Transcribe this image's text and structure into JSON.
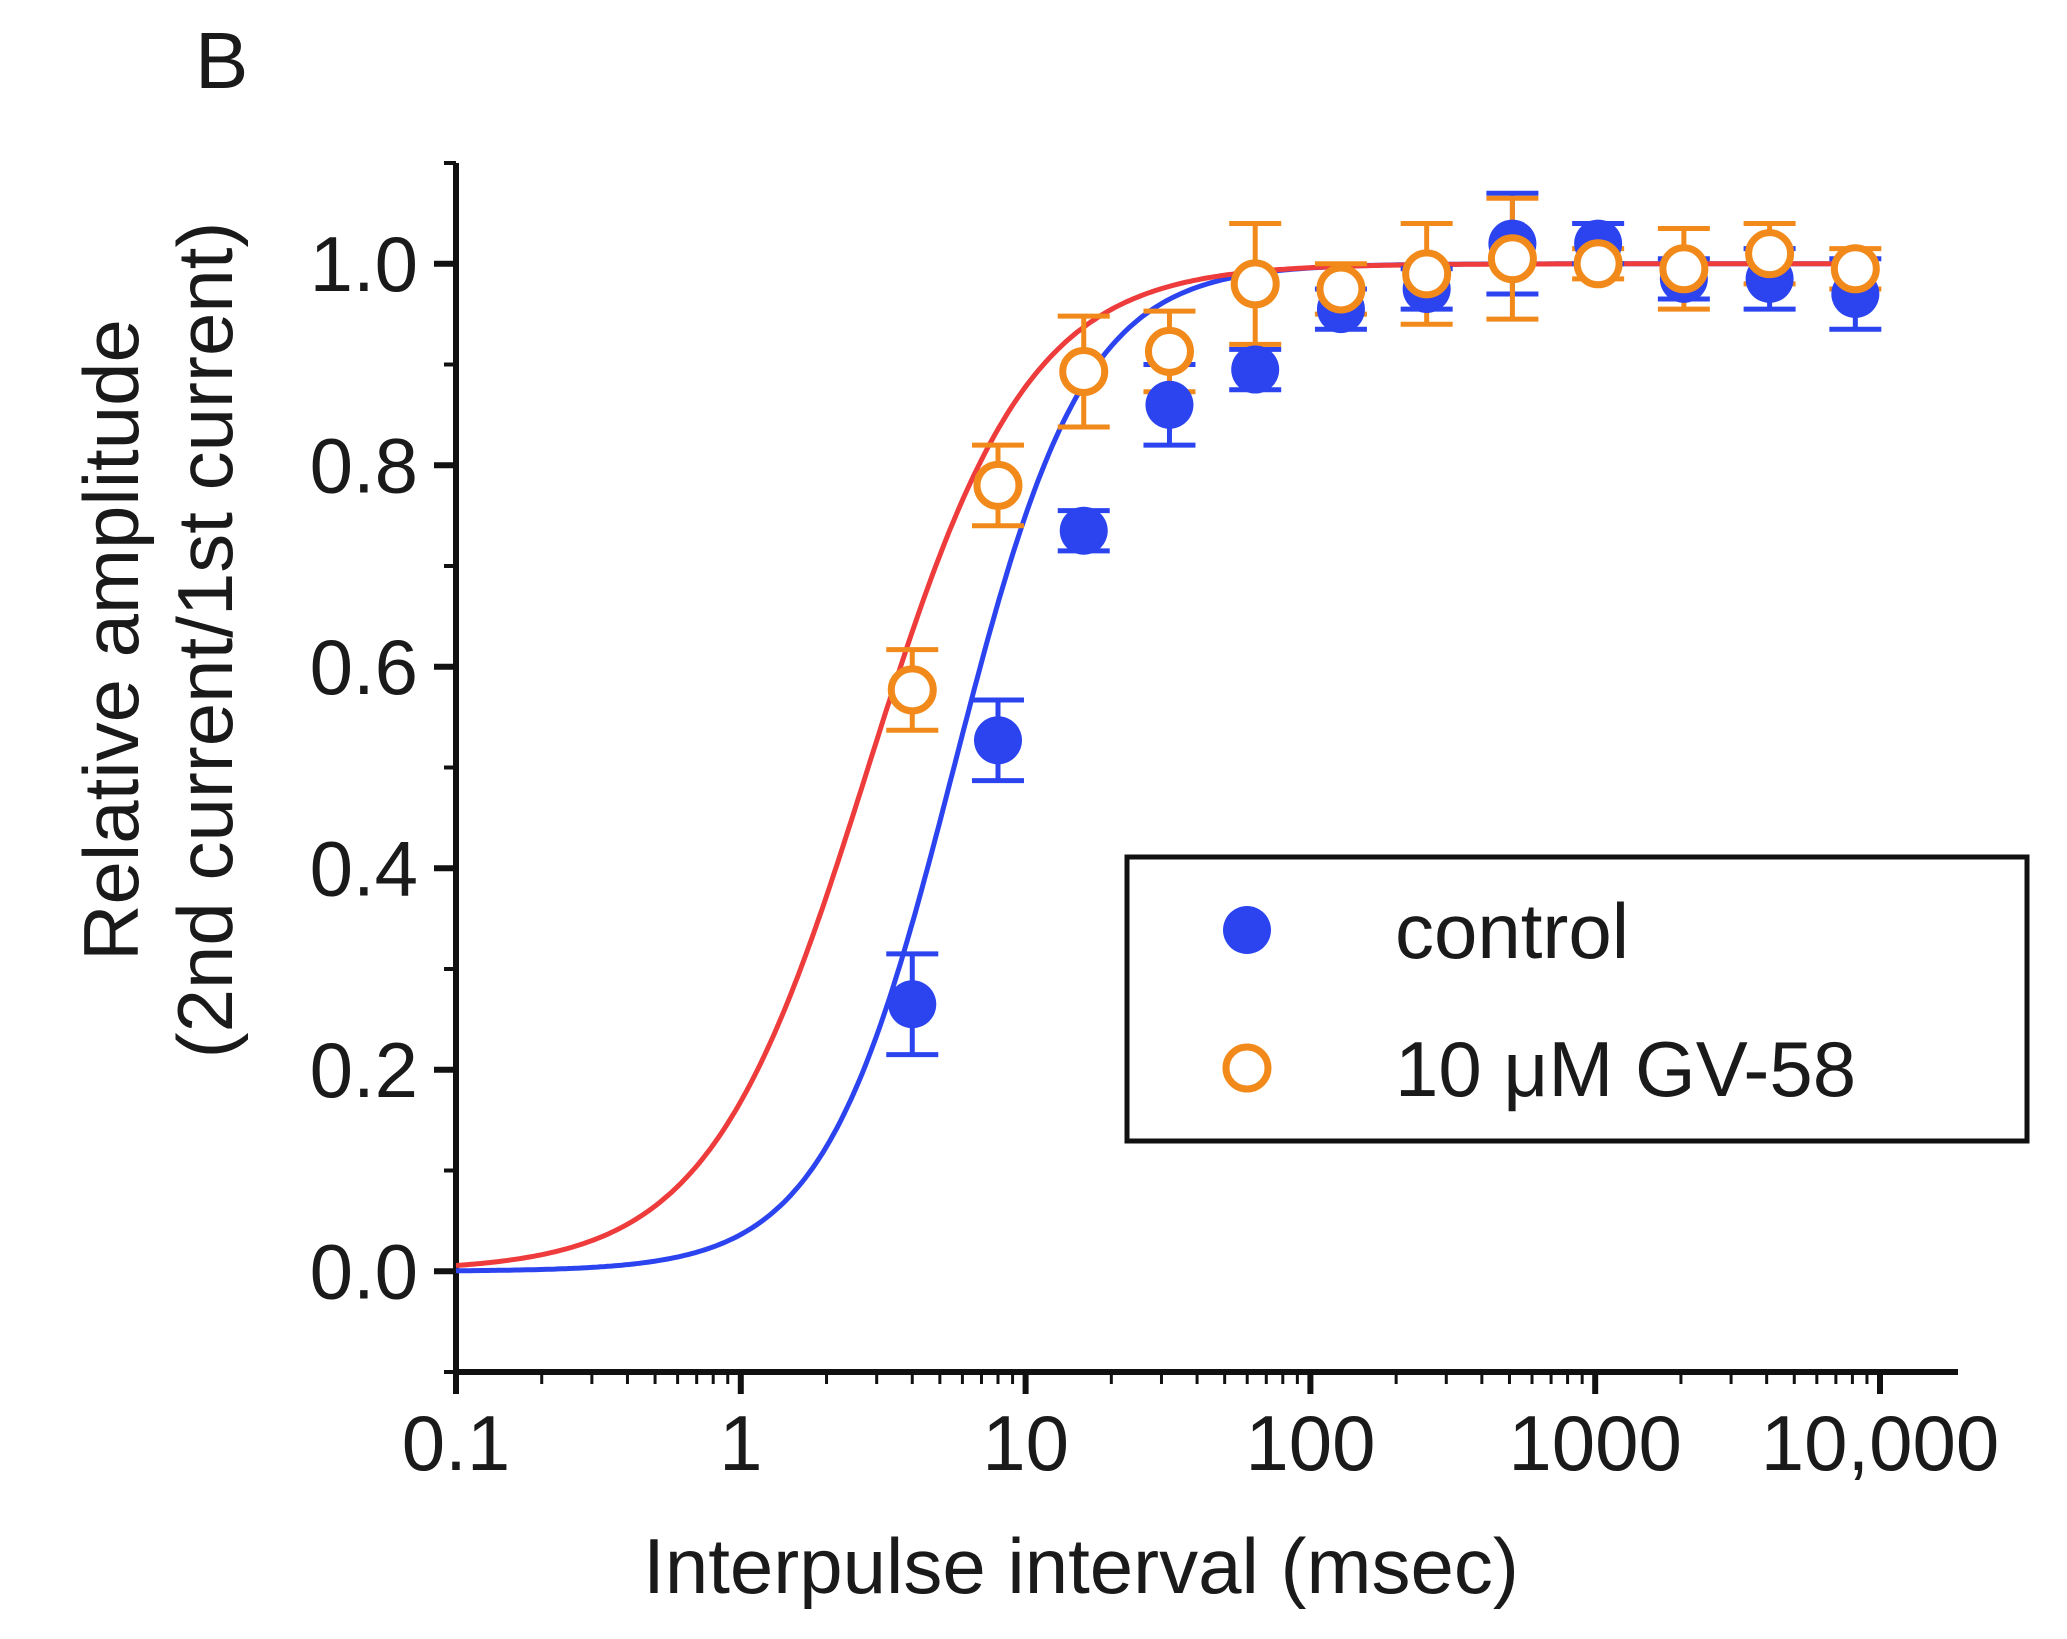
{
  "chart_data": {
    "type": "scatter",
    "panel_label": "B",
    "title": "",
    "xlabel": "Interpulse interval (msec)",
    "ylabel_line1": "Relative amplitude",
    "ylabel_line2": "(2nd current/1st current)",
    "x_scale": "log",
    "xlim": [
      0.1,
      10000
    ],
    "ylim": [
      -0.1,
      1.1
    ],
    "x_ticks": [
      {
        "value": 0.1,
        "label": "0.1"
      },
      {
        "value": 1,
        "label": "1"
      },
      {
        "value": 10,
        "label": "10"
      },
      {
        "value": 100,
        "label": "100"
      },
      {
        "value": 1000,
        "label": "1000"
      },
      {
        "value": 10000,
        "label": "10,000"
      }
    ],
    "y_ticks": [
      {
        "value": 0.0,
        "label": "0.0"
      },
      {
        "value": 0.2,
        "label": "0.2"
      },
      {
        "value": 0.4,
        "label": "0.4"
      },
      {
        "value": 0.6,
        "label": "0.6"
      },
      {
        "value": 0.8,
        "label": "0.8"
      },
      {
        "value": 1.0,
        "label": "1.0"
      }
    ],
    "legend_position": "center-right",
    "series": [
      {
        "name": "control",
        "marker": "filled-circle",
        "color": "#2b44f0",
        "fit_color": "#2b44f0",
        "fit": {
          "x50": 5.6,
          "n": 1.9
        },
        "points": [
          {
            "x": 4,
            "y": 0.265,
            "err": 0.05
          },
          {
            "x": 8,
            "y": 0.527,
            "err": 0.04
          },
          {
            "x": 16,
            "y": 0.735,
            "err": 0.02
          },
          {
            "x": 32,
            "y": 0.86,
            "err": 0.04
          },
          {
            "x": 64,
            "y": 0.895,
            "err": 0.02
          },
          {
            "x": 128,
            "y": 0.955,
            "err": 0.02
          },
          {
            "x": 256,
            "y": 0.975,
            "err": 0.02
          },
          {
            "x": 512,
            "y": 1.02,
            "err": 0.05
          },
          {
            "x": 1024,
            "y": 1.02,
            "err": 0.02
          },
          {
            "x": 2048,
            "y": 0.985,
            "err": 0.02
          },
          {
            "x": 4096,
            "y": 0.985,
            "err": 0.03
          },
          {
            "x": 8192,
            "y": 0.97,
            "err": 0.035
          }
        ]
      },
      {
        "name": "10 μM GV-58",
        "marker": "open-circle",
        "color": "#f28a1b",
        "fit_color": "#ee3b3b",
        "fit": {
          "x50": 2.8,
          "n": 1.55
        },
        "points": [
          {
            "x": 4,
            "y": 0.577,
            "err": 0.04
          },
          {
            "x": 8,
            "y": 0.78,
            "err": 0.04
          },
          {
            "x": 16,
            "y": 0.893,
            "err": 0.055
          },
          {
            "x": 32,
            "y": 0.913,
            "err": 0.04
          },
          {
            "x": 64,
            "y": 0.98,
            "err": 0.06
          },
          {
            "x": 128,
            "y": 0.975,
            "err": 0.025
          },
          {
            "x": 256,
            "y": 0.99,
            "err": 0.05
          },
          {
            "x": 512,
            "y": 1.005,
            "err": 0.06
          },
          {
            "x": 1024,
            "y": 1.0,
            "err": 0.015
          },
          {
            "x": 2048,
            "y": 0.995,
            "err": 0.04
          },
          {
            "x": 4096,
            "y": 1.01,
            "err": 0.03
          },
          {
            "x": 8192,
            "y": 0.995,
            "err": 0.02
          }
        ]
      }
    ]
  }
}
